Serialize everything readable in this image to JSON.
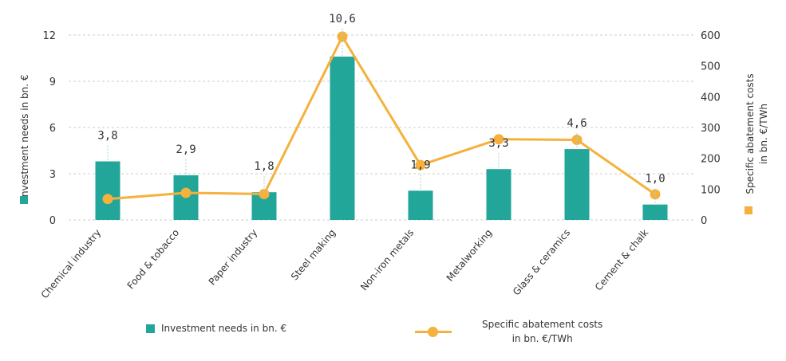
{
  "chart_data": {
    "type": "bar+line",
    "categories": [
      "Chemical industry",
      "Food & tobacco",
      "Paper industry",
      "Steel making",
      "Non-iron metals",
      "Metalworking",
      "Glass & ceramics",
      "Cement & chalk"
    ],
    "series": [
      {
        "name": "Investment needs in bn. €",
        "type": "bar",
        "axis": "left",
        "values": [
          3.8,
          2.9,
          1.8,
          10.6,
          1.9,
          3.3,
          4.6,
          1.0
        ],
        "labels": [
          "3,8",
          "2,9",
          "1,8",
          "10,6",
          "1,9",
          "3,3",
          "4,6",
          "1,0"
        ]
      },
      {
        "name": "Specific abatement costs in bn. €/TWh",
        "type": "line",
        "axis": "right",
        "values": [
          68,
          88,
          84,
          595,
          178,
          262,
          260,
          83
        ]
      }
    ],
    "left_axis": {
      "label": "Investment needs in bn. €",
      "ylim": [
        0,
        12
      ],
      "ticks": [
        "0",
        "3",
        "6",
        "9",
        "12"
      ]
    },
    "right_axis": {
      "label_line1": "Specific abatement costs",
      "label_line2": "in bn. €/TWh",
      "ylim": [
        0,
        600
      ],
      "ticks": [
        "0",
        "100",
        "200",
        "300",
        "400",
        "500",
        "600"
      ]
    },
    "grid": true,
    "legend_position": "bottom",
    "colors": {
      "bar": "#22a699",
      "line": "#f4b13d",
      "grid": "#cccccc",
      "text": "#333333"
    }
  },
  "legend": {
    "bar_label": "Investment needs in bn. €",
    "line_label_1": "Specific abatement costs",
    "line_label_2": "in bn. €/TWh"
  }
}
